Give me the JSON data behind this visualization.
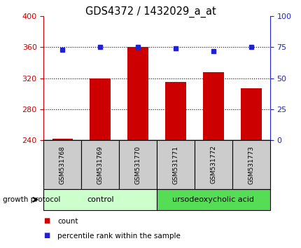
{
  "title": "GDS4372 / 1432029_a_at",
  "samples": [
    "GSM531768",
    "GSM531769",
    "GSM531770",
    "GSM531771",
    "GSM531772",
    "GSM531773"
  ],
  "bar_values": [
    242,
    320,
    360,
    315,
    328,
    307
  ],
  "percentile_values": [
    73,
    75,
    75,
    74,
    72,
    75
  ],
  "bar_color": "#cc0000",
  "dot_color": "#2222cc",
  "ylim_left": [
    240,
    400
  ],
  "ylim_right": [
    0,
    100
  ],
  "yticks_left": [
    240,
    280,
    320,
    360,
    400
  ],
  "yticks_right": [
    0,
    25,
    50,
    75,
    100
  ],
  "groups": [
    {
      "label": "control",
      "indices": [
        0,
        1,
        2
      ],
      "color": "#ccffcc"
    },
    {
      "label": "ursodeoxycholic acid",
      "indices": [
        3,
        4,
        5
      ],
      "color": "#55dd55"
    }
  ],
  "group_label": "growth protocol",
  "legend_items": [
    {
      "label": "count",
      "color": "#cc0000"
    },
    {
      "label": "percentile rank within the sample",
      "color": "#2222cc"
    }
  ],
  "bar_bottom": 240,
  "tick_label_color_left": "#cc0000",
  "tick_label_color_right": "#2222cc",
  "sample_box_color": "#cccccc",
  "fig_width": 4.31,
  "fig_height": 3.54,
  "dpi": 100
}
